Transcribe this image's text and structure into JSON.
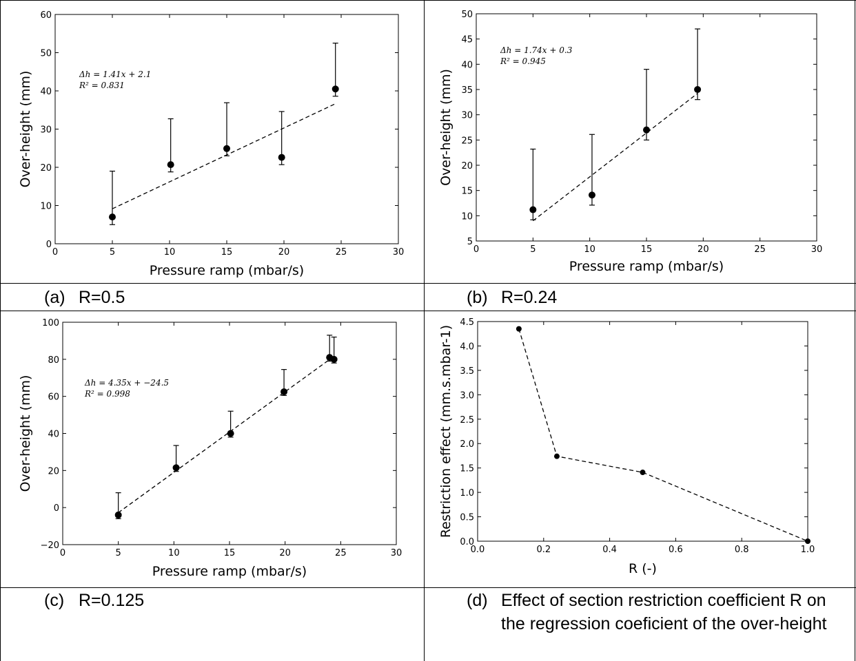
{
  "captions": [
    {
      "letter": "(a)",
      "text": "R=0.5"
    },
    {
      "letter": "(b)",
      "text": "R=0.24"
    },
    {
      "letter": "(c)",
      "text": "R=0.125"
    },
    {
      "letter": "(d)",
      "text": "Effect of section restriction coefficient R on the regression coeficient of the over-height"
    }
  ],
  "chart_data": [
    {
      "id": "a",
      "type": "scatter",
      "xlabel": "Pressure ramp (mbar/s)",
      "ylabel": "Over-height (mm)",
      "xlim": [
        0,
        30
      ],
      "ylim": [
        0,
        60
      ],
      "xticks": [
        0,
        5,
        10,
        15,
        20,
        25,
        30
      ],
      "yticks": [
        0,
        10,
        20,
        30,
        40,
        50,
        60
      ],
      "points": [
        {
          "x": 5,
          "y": 7,
          "err_lo": 2,
          "err_hi": 12
        },
        {
          "x": 10.1,
          "y": 20.7,
          "err_lo": 1.9,
          "err_hi": 12
        },
        {
          "x": 15,
          "y": 24.9,
          "err_lo": 1.9,
          "err_hi": 12
        },
        {
          "x": 19.8,
          "y": 22.6,
          "err_lo": 1.9,
          "err_hi": 12
        },
        {
          "x": 24.5,
          "y": 40.5,
          "err_lo": 1.9,
          "err_hi": 12
        }
      ],
      "fit": {
        "slope": 1.41,
        "intercept": 2.1,
        "x_range": [
          5,
          24.5
        ]
      },
      "annotation": [
        "Δh = 1.41x + 2.1",
        "R² = 0.831"
      ]
    },
    {
      "id": "b",
      "type": "scatter",
      "xlabel": "Pressure ramp (mbar/s)",
      "ylabel": "Over-height (mm)",
      "xlim": [
        0,
        30
      ],
      "ylim": [
        5,
        50
      ],
      "xticks": [
        0,
        5,
        10,
        15,
        20,
        25,
        30
      ],
      "yticks": [
        5,
        10,
        15,
        20,
        25,
        30,
        35,
        40,
        45,
        50
      ],
      "points": [
        {
          "x": 5,
          "y": 11.2,
          "err_lo": 2,
          "err_hi": 12
        },
        {
          "x": 10.2,
          "y": 14.1,
          "err_lo": 2,
          "err_hi": 12
        },
        {
          "x": 15,
          "y": 27,
          "err_lo": 2,
          "err_hi": 12
        },
        {
          "x": 19.5,
          "y": 35,
          "err_lo": 2,
          "err_hi": 12
        }
      ],
      "fit": {
        "slope": 1.74,
        "intercept": 0.3,
        "x_range": [
          5,
          19.5
        ]
      },
      "annotation": [
        "Δh = 1.74x + 0.3",
        "R² = 0.945"
      ]
    },
    {
      "id": "c",
      "type": "scatter",
      "xlabel": "Pressure ramp (mbar/s)",
      "ylabel": "Over-height (mm)",
      "xlim": [
        0,
        30
      ],
      "ylim": [
        -20,
        100
      ],
      "xticks": [
        0,
        5,
        10,
        15,
        20,
        25,
        30
      ],
      "yticks": [
        -20,
        0,
        20,
        40,
        60,
        80,
        100
      ],
      "points": [
        {
          "x": 5,
          "y": -4,
          "err_lo": 2,
          "err_hi": 12
        },
        {
          "x": 10.2,
          "y": 21.5,
          "err_lo": 2,
          "err_hi": 12
        },
        {
          "x": 15.1,
          "y": 40,
          "err_lo": 2,
          "err_hi": 12
        },
        {
          "x": 19.9,
          "y": 62.5,
          "err_lo": 2,
          "err_hi": 12
        },
        {
          "x": 24,
          "y": 81,
          "err_lo": 2,
          "err_hi": 12
        },
        {
          "x": 24.4,
          "y": 80,
          "err_lo": 2,
          "err_hi": 12
        }
      ],
      "fit": {
        "slope": 4.35,
        "intercept": -24.5,
        "x_range": [
          5,
          24.4
        ]
      },
      "annotation": [
        "Δh = 4.35x + −24.5",
        "R² = 0.998"
      ]
    },
    {
      "id": "d",
      "type": "line",
      "xlabel": "R (-)",
      "ylabel": "Restriction effect (mm.s.mbar-1)",
      "xlim": [
        0,
        1
      ],
      "ylim": [
        0,
        4.5
      ],
      "xticks": [
        0.0,
        0.2,
        0.4,
        0.6,
        0.8,
        1.0
      ],
      "yticks": [
        0.0,
        0.5,
        1.0,
        1.5,
        2.0,
        2.5,
        3.0,
        3.5,
        4.0,
        4.5
      ],
      "decimals": 1,
      "points": [
        {
          "x": 0.125,
          "y": 4.35
        },
        {
          "x": 0.24,
          "y": 1.74
        },
        {
          "x": 0.5,
          "y": 1.41
        },
        {
          "x": 1.0,
          "y": 0
        }
      ],
      "line_style": "dashed",
      "marker": "filled-circle"
    }
  ]
}
